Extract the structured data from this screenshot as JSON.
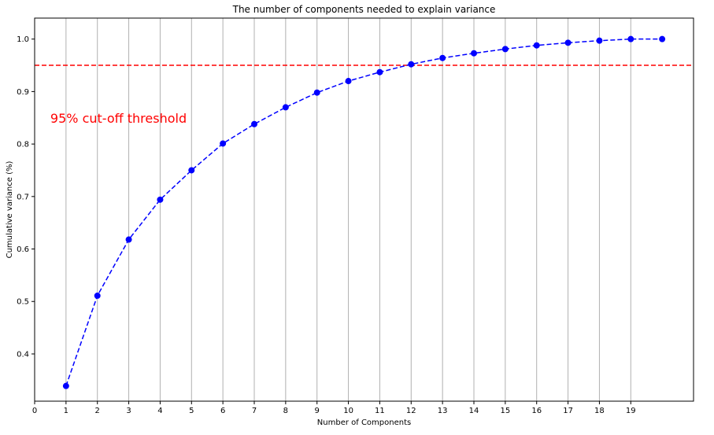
{
  "chart_data": {
    "type": "line",
    "title": "The number of components needed to explain variance",
    "xlabel": "Number of Components",
    "ylabel": "Cumulative variance (%)",
    "xlim": [
      0,
      21
    ],
    "ylim": [
      0.31,
      1.04
    ],
    "x_ticks": [
      0,
      1,
      2,
      3,
      4,
      5,
      6,
      7,
      8,
      9,
      10,
      11,
      12,
      13,
      14,
      15,
      16,
      17,
      18,
      19
    ],
    "y_ticks": [
      0.4,
      0.5,
      0.6,
      0.7,
      0.8,
      0.9,
      1.0
    ],
    "y_tick_labels": [
      "0.4",
      "0.5",
      "0.6",
      "0.7",
      "0.8",
      "0.9",
      "1.0"
    ],
    "grid": "vertical",
    "series": [
      {
        "x": [
          1,
          2,
          3,
          4,
          5,
          6,
          7,
          8,
          9,
          10,
          11,
          12,
          13,
          14,
          15,
          16,
          17,
          18,
          19,
          20
        ],
        "values": [
          0.339,
          0.511,
          0.618,
          0.694,
          0.75,
          0.801,
          0.838,
          0.87,
          0.898,
          0.92,
          0.937,
          0.952,
          0.964,
          0.973,
          0.981,
          0.988,
          0.993,
          0.997,
          1.0,
          1.0
        ],
        "color": "#0000ff",
        "linestyle": "dashed",
        "marker": "circle"
      }
    ],
    "threshold": {
      "y": 0.95,
      "color": "#ff0000",
      "linestyle": "dashed"
    },
    "annotation": {
      "text": "95% cut-off threshold",
      "x": 0.5,
      "y": 0.85,
      "color": "#ff0000"
    }
  }
}
